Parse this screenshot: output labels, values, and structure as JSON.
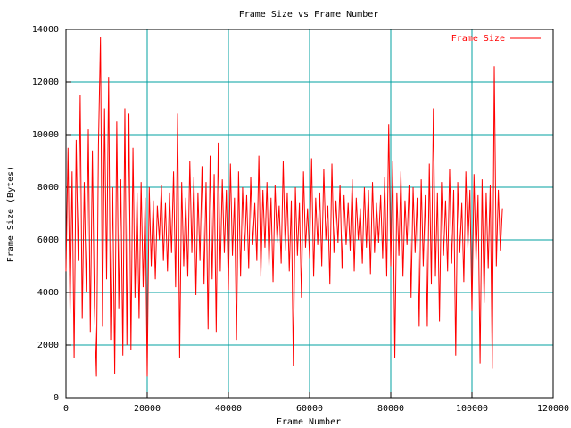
{
  "chart_data": {
    "type": "line",
    "title": "Frame Size vs Frame Number",
    "x_label": "Frame Number",
    "y_label": "Frame Size (Bytes)",
    "xlim": [
      0,
      120000
    ],
    "xticks": [
      0,
      20000,
      40000,
      60000,
      80000,
      100000,
      120000
    ],
    "ylim": [
      0,
      14000
    ],
    "yticks": [
      0,
      2000,
      4000,
      6000,
      8000,
      10000,
      12000,
      14000
    ],
    "grid": true,
    "grid_color": "#00a0a0",
    "legend": "top-right",
    "x": [
      0,
      500,
      1000,
      1500,
      2000,
      2500,
      3000,
      3500,
      4000,
      4500,
      5000,
      5500,
      6000,
      6500,
      7000,
      7500,
      8000,
      8500,
      9000,
      9500,
      10000,
      10500,
      11000,
      11500,
      12000,
      12500,
      13000,
      13500,
      14000,
      14500,
      15000,
      15500,
      16000,
      16500,
      17000,
      17500,
      18000,
      18500,
      19000,
      19500,
      20000,
      20500,
      21000,
      21500,
      22000,
      22500,
      23000,
      23500,
      24000,
      24500,
      25000,
      25500,
      26000,
      26500,
      27000,
      27500,
      28000,
      28500,
      29000,
      29500,
      30000,
      30500,
      31000,
      31500,
      32000,
      32500,
      33000,
      33500,
      34000,
      34500,
      35000,
      35500,
      36000,
      36500,
      37000,
      37500,
      38000,
      38500,
      39000,
      39500,
      40000,
      40500,
      41000,
      41500,
      42000,
      42500,
      43000,
      43500,
      44000,
      44500,
      45000,
      45500,
      46000,
      46500,
      47000,
      47500,
      48000,
      48500,
      49000,
      49500,
      50000,
      50500,
      51000,
      51500,
      52000,
      52500,
      53000,
      53500,
      54000,
      54500,
      55000,
      55500,
      56000,
      56500,
      57000,
      57500,
      58000,
      58500,
      59000,
      59500,
      60000,
      60500,
      61000,
      61500,
      62000,
      62500,
      63000,
      63500,
      64000,
      64500,
      65000,
      65500,
      66000,
      66500,
      67000,
      67500,
      68000,
      68500,
      69000,
      69500,
      70000,
      70500,
      71000,
      71500,
      72000,
      72500,
      73000,
      73500,
      74000,
      74500,
      75000,
      75500,
      76000,
      76500,
      77000,
      77500,
      78000,
      78500,
      79000,
      79500,
      80000,
      80500,
      81000,
      81500,
      82000,
      82500,
      83000,
      83500,
      84000,
      84500,
      85000,
      85500,
      86000,
      86500,
      87000,
      87500,
      88000,
      88500,
      89000,
      89500,
      90000,
      90500,
      91000,
      91500,
      92000,
      92500,
      93000,
      93500,
      94000,
      94500,
      95000,
      95500,
      96000,
      96500,
      97000,
      97500,
      98000,
      98500,
      99000,
      99500,
      100000,
      100500,
      101000,
      101500,
      102000,
      102500,
      103000,
      103500,
      104000,
      104500,
      105000,
      105500,
      106000,
      106500,
      107000,
      107500
    ],
    "series": [
      {
        "name": "Frame Size",
        "color": "#ff0000",
        "values": [
          4800,
          9500,
          3200,
          8600,
          1500,
          9800,
          5200,
          11500,
          3000,
          8200,
          4000,
          10200,
          2500,
          9400,
          3500,
          800,
          9600,
          13700,
          2700,
          11000,
          4500,
          12200,
          2200,
          8000,
          900,
          10500,
          3400,
          8300,
          1600,
          11000,
          2000,
          10800,
          1800,
          9500,
          3800,
          7800,
          3000,
          8200,
          4200,
          7600,
          800,
          8000,
          5000,
          7500,
          4500,
          7300,
          6000,
          8100,
          5200,
          7400,
          4800,
          7800,
          5500,
          8600,
          4200,
          10800,
          1500,
          8200,
          5000,
          7600,
          4600,
          9000,
          5500,
          8400,
          3900,
          7800,
          5200,
          8800,
          4300,
          8200,
          2600,
          9200,
          4500,
          8500,
          2500,
          9700,
          4800,
          8300,
          5500,
          7900,
          4100,
          8900,
          5400,
          7600,
          2200,
          8600,
          4600,
          8000,
          5600,
          7700,
          4900,
          8400,
          5800,
          7400,
          5200,
          9200,
          4600,
          7900,
          5700,
          8200,
          5000,
          7600,
          4400,
          8100,
          5900,
          7300,
          5100,
          9000,
          5600,
          7800,
          4800,
          7500,
          1200,
          8000,
          5400,
          7400,
          3800,
          8600,
          5700,
          7200,
          5300,
          9100,
          4600,
          7600,
          5800,
          7800,
          5000,
          8700,
          6000,
          7300,
          4300,
          8900,
          5500,
          7500,
          5900,
          8100,
          4900,
          7700,
          5800,
          7400,
          5600,
          8300,
          4800,
          7600,
          6000,
          7200,
          5100,
          8000,
          5700,
          7900,
          4700,
          8200,
          5500,
          7400,
          5900,
          7700,
          5300,
          8400,
          4600,
          10400,
          5000,
          9000,
          1500,
          7800,
          5400,
          8600,
          4600,
          7500,
          5800,
          8100,
          3800,
          8000,
          5500,
          7600,
          2700,
          8300,
          5000,
          7700,
          2700,
          8900,
          4300,
          11000,
          4600,
          7800,
          2900,
          8200,
          5400,
          7500,
          4800,
          8700,
          5100,
          7900,
          1600,
          8200,
          5500,
          7400,
          4400,
          8600,
          5700,
          7900,
          3300,
          8500,
          5200,
          7700,
          1300,
          8300,
          3600,
          7800,
          4900,
          8100,
          1100,
          12600,
          5000,
          7900,
          5600,
          7200
        ]
      }
    ]
  }
}
